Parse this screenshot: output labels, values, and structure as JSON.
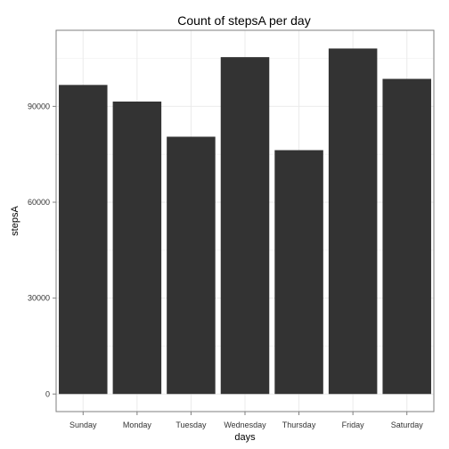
{
  "chart_data": {
    "type": "bar",
    "title": "Count of stepsA per day",
    "xlabel": "days",
    "ylabel": "stepsA",
    "categories": [
      "Sunday",
      "Monday",
      "Tuesday",
      "Wednesday",
      "Thursday",
      "Friday",
      "Saturday"
    ],
    "values": [
      96700,
      91500,
      80500,
      105400,
      76300,
      108100,
      98600
    ],
    "yticks": [
      0,
      30000,
      60000,
      90000
    ],
    "ytick_labels": [
      "0",
      "30000",
      "60000",
      "90000"
    ],
    "ylim": [
      -5500,
      113800
    ],
    "grid": true,
    "bar_color": "#333333",
    "background_color": "#ffffff",
    "grid_color": "#ebebeb",
    "panel_border_color": "#7f7f7f"
  }
}
